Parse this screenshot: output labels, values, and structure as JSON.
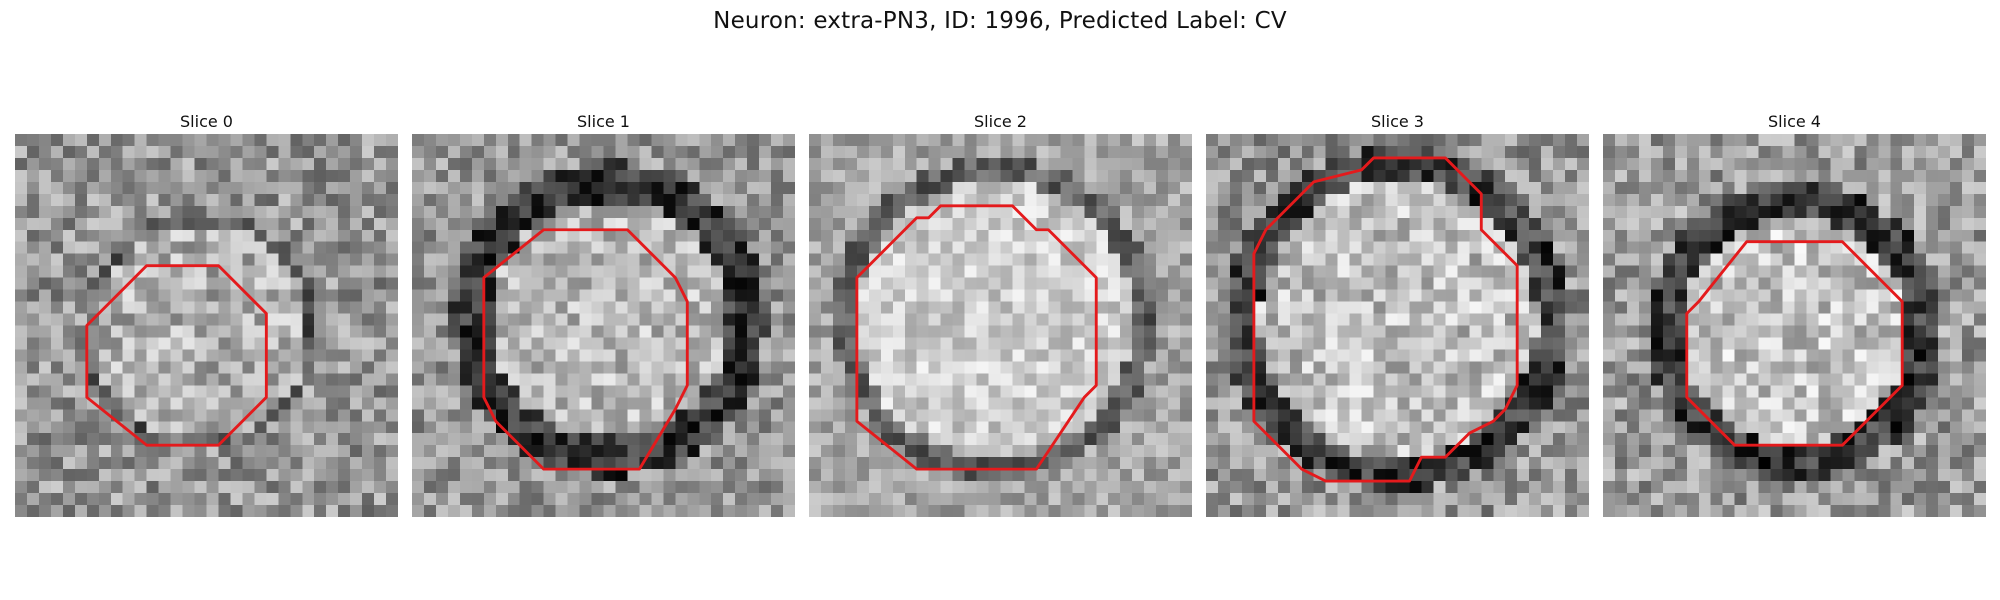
{
  "figure": {
    "title": "Neuron: extra-PN3, ID: 1996, Predicted Label: CV"
  },
  "panels": [
    {
      "title": "Slice 0",
      "contour_color": "#e41a1c"
    },
    {
      "title": "Slice 1",
      "contour_color": "#e41a1c"
    },
    {
      "title": "Slice 2",
      "contour_color": "#e41a1c"
    },
    {
      "title": "Slice 3",
      "contour_color": "#e41a1c"
    },
    {
      "title": "Slice 4",
      "contour_color": "#e41a1c"
    }
  ]
}
